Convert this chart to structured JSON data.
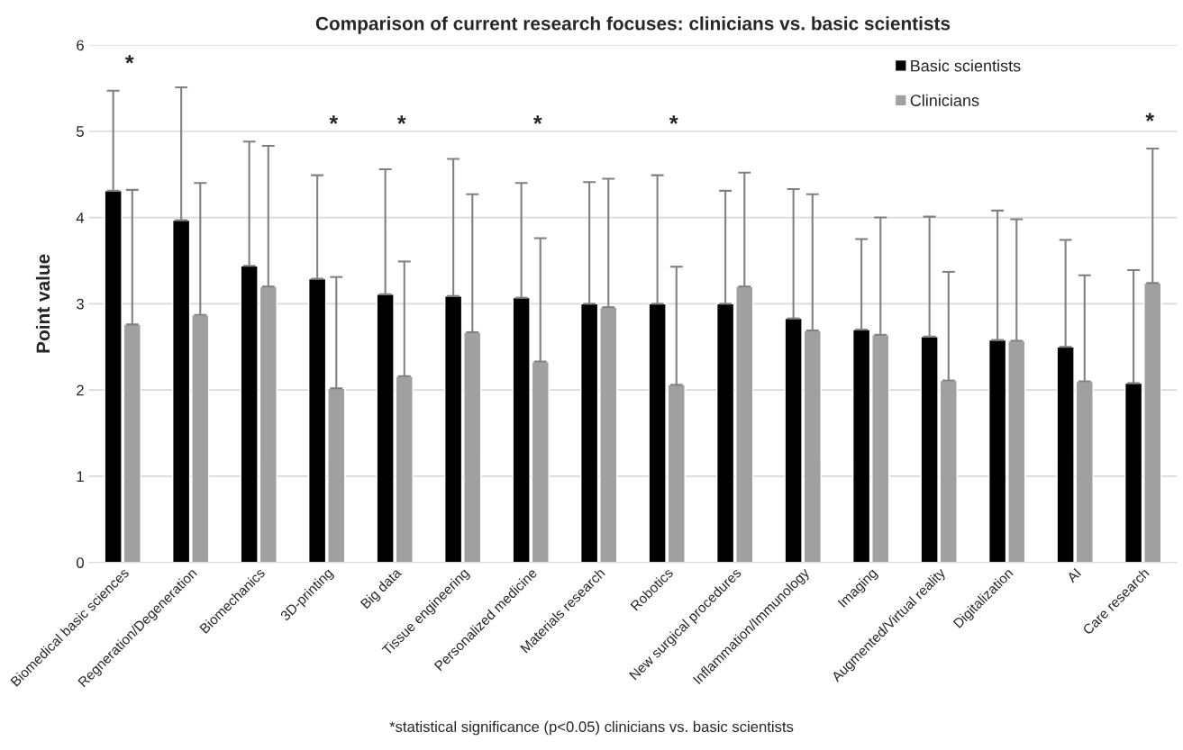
{
  "chart_data": {
    "type": "bar",
    "title": "Comparison of current research focuses: clinicians vs. basic scientists",
    "ylabel": "Point value",
    "categories": [
      "Biomedical basic sciences",
      "Regneration/Degeneration",
      "Biomechanics",
      "3D-printing",
      "Big data",
      "Tissue engineering",
      "Personalized medicine",
      "Materials research",
      "Robotics",
      "New surgical procedures",
      "Inflammation/Immunology",
      "Imaging",
      "Augmented/Virtual reality",
      "Digitalization",
      "AI",
      "Care research"
    ],
    "series": [
      {
        "name": "Basic scientists",
        "color": "#000000",
        "values": [
          4.31,
          3.97,
          3.44,
          3.29,
          3.11,
          3.09,
          3.07,
          3.0,
          3.0,
          3.0,
          2.83,
          2.7,
          2.62,
          2.58,
          2.5,
          2.08
        ],
        "errors": [
          [
            4.31,
            5.47
          ],
          [
            3.97,
            5.51
          ],
          [
            3.44,
            4.88
          ],
          [
            3.29,
            4.49
          ],
          [
            3.11,
            4.56
          ],
          [
            3.09,
            4.68
          ],
          [
            3.07,
            4.4
          ],
          [
            3.0,
            4.41
          ],
          [
            3.0,
            4.49
          ],
          [
            3.0,
            4.31
          ],
          [
            2.83,
            4.33
          ],
          [
            2.7,
            3.75
          ],
          [
            2.62,
            4.01
          ],
          [
            2.58,
            4.08
          ],
          [
            2.5,
            3.74
          ],
          [
            2.08,
            3.39
          ]
        ]
      },
      {
        "name": "Clinicians",
        "color": "#a0a0a0",
        "values": [
          2.76,
          2.87,
          3.2,
          2.02,
          2.16,
          2.67,
          2.33,
          2.96,
          2.06,
          3.2,
          2.69,
          2.64,
          2.11,
          2.57,
          2.1,
          3.24
        ],
        "errors": [
          [
            2.76,
            4.32
          ],
          [
            2.87,
            4.4
          ],
          [
            3.2,
            4.83
          ],
          [
            2.02,
            3.31
          ],
          [
            2.16,
            3.49
          ],
          [
            2.67,
            4.27
          ],
          [
            2.33,
            3.76
          ],
          [
            2.96,
            4.45
          ],
          [
            2.06,
            3.43
          ],
          [
            3.2,
            4.52
          ],
          [
            2.69,
            4.27
          ],
          [
            2.64,
            4.0
          ],
          [
            2.11,
            3.37
          ],
          [
            2.57,
            3.98
          ],
          [
            2.1,
            3.33
          ],
          [
            3.24,
            4.8
          ]
        ]
      }
    ],
    "ylim": [
      0,
      6
    ],
    "yticks": [
      0,
      1,
      2,
      3,
      4,
      5,
      6
    ],
    "grid": "y",
    "legend": "top right",
    "annotations": [
      "*",
      "*",
      "*",
      "*",
      "*",
      "*",
      "*statistical significance (p<0.05) clinicians vs. basic scientists"
    ]
  }
}
